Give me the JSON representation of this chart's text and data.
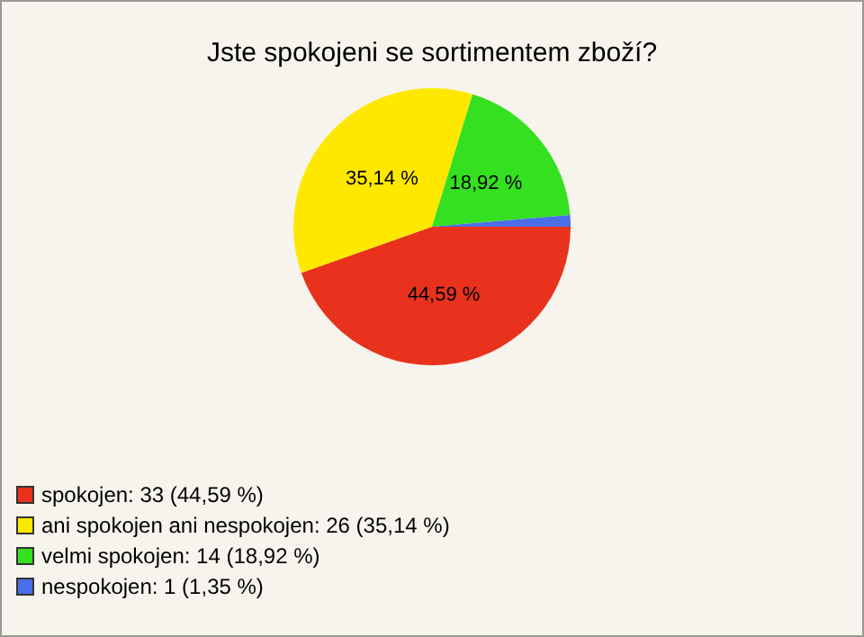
{
  "chart_data": {
    "type": "pie",
    "title": "Jste spokojeni se sortimentem zboží?",
    "categories": [
      "spokojen: 33 (44,59 %)",
      "ani spokojen ani nespokojen: 26 (35,14 %)",
      "velmi spokojen: 14 (18,92 %)",
      "nespokojen: 1 (1,35 %)"
    ],
    "values": [
      44.59,
      35.14,
      18.92,
      1.35
    ],
    "colors": [
      "#e8321e",
      "#ffe800",
      "#35e020",
      "#4a6ee8"
    ],
    "value_labels": [
      "44,59 %",
      "35,14 %",
      "18,92 %",
      null
    ],
    "legend": "bottom left"
  }
}
